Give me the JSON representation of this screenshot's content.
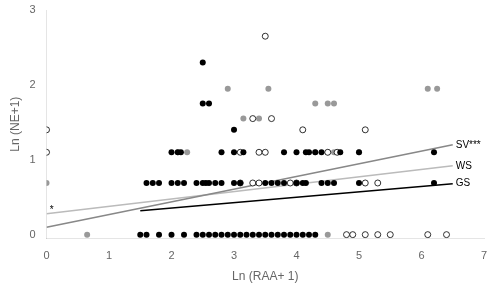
{
  "chart_data": {
    "type": "scatter",
    "title": "",
    "xlabel": "Ln (RAA+ 1)",
    "ylabel": "Ln (NE+1)",
    "xlim": [
      0,
      7
    ],
    "ylim": [
      -0.05,
      3
    ],
    "xticks": [
      0,
      1,
      2,
      3,
      4,
      5,
      6,
      7
    ],
    "yticks": [
      0,
      1,
      2,
      3
    ],
    "grid": false,
    "series": [
      {
        "type": "scatter",
        "marker": "circle",
        "color": "#000000",
        "x": [
          1.5,
          1.6,
          1.8,
          2.0,
          2.2,
          2.4,
          2.5,
          2.6,
          2.7,
          2.8,
          2.9,
          3.0,
          3.1,
          3.2,
          3.3,
          3.4,
          3.5,
          3.6,
          3.7,
          3.8,
          3.9,
          4.0,
          4.1,
          4.2,
          4.3,
          1.6,
          1.7,
          1.8,
          2.0,
          2.1,
          2.2,
          2.4,
          2.5,
          2.55,
          2.6,
          2.7,
          2.8,
          3.0,
          3.1,
          3.5,
          3.6,
          3.7,
          3.8,
          4.0,
          4.1,
          4.15,
          4.4,
          4.5,
          4.6,
          5.0,
          6.2,
          2.0,
          2.1,
          2.15,
          2.8,
          3.0,
          3.15,
          3.8,
          4.0,
          4.15,
          4.2,
          4.3,
          4.4,
          4.7,
          5.0,
          6.2,
          2.5,
          2.6,
          3.0,
          2.5
        ],
        "values": [
          0.0,
          0.0,
          0.0,
          0.0,
          0.0,
          0.0,
          0.0,
          0.0,
          0.0,
          0.0,
          0.0,
          0.0,
          0.0,
          0.0,
          0.0,
          0.0,
          0.0,
          0.0,
          0.0,
          0.0,
          0.0,
          0.0,
          0.0,
          0.0,
          0.0,
          0.69,
          0.69,
          0.69,
          0.69,
          0.69,
          0.69,
          0.69,
          0.69,
          0.69,
          0.69,
          0.69,
          0.69,
          0.69,
          0.69,
          0.69,
          0.69,
          0.69,
          0.69,
          0.69,
          0.69,
          0.69,
          0.69,
          0.69,
          0.69,
          0.69,
          0.69,
          1.1,
          1.1,
          1.1,
          1.1,
          1.1,
          1.1,
          1.1,
          1.1,
          1.1,
          1.1,
          1.1,
          1.1,
          1.1,
          1.1,
          1.1,
          1.75,
          1.75,
          1.4,
          2.3
        ]
      },
      {
        "type": "scatter",
        "marker": "circle",
        "color": "#ffffff",
        "x": [
          0.0,
          0.0,
          3.1,
          3.3,
          3.4,
          3.9,
          4.0,
          4.8,
          4.9,
          5.1,
          5.3,
          5.5,
          6.1,
          6.4,
          3.1,
          3.4,
          3.5,
          4.5,
          4.65,
          3.3,
          3.6,
          4.1,
          3.5,
          5.1,
          5.3,
          5.1
        ],
        "values": [
          1.1,
          1.4,
          0.69,
          0.69,
          0.69,
          0.69,
          0.69,
          0.0,
          0.0,
          0.0,
          0.0,
          0.0,
          0.0,
          0.0,
          1.1,
          1.1,
          1.1,
          1.1,
          1.1,
          1.55,
          1.55,
          1.4,
          2.65,
          0.69,
          0.69,
          1.4
        ]
      },
      {
        "type": "scatter",
        "marker": "circle",
        "color": "#999999",
        "x": [
          0.65,
          0.0,
          2.1,
          2.25,
          2.9,
          3.15,
          3.4,
          3.55,
          4.3,
          4.5,
          4.6,
          4.3,
          4.5,
          4.6,
          5.0,
          6.1,
          6.25,
          4.5
        ],
        "values": [
          0.0,
          0.69,
          1.1,
          1.1,
          1.95,
          1.55,
          1.55,
          1.95,
          1.75,
          1.75,
          1.75,
          1.1,
          1.1,
          1.1,
          1.1,
          1.95,
          1.95,
          0.0
        ]
      },
      {
        "type": "line",
        "line_style": "solid",
        "name": "SV***",
        "color": "#888888",
        "x": [
          0.0,
          6.5
        ],
        "values": [
          0.1,
          1.2
        ]
      },
      {
        "type": "line",
        "line_style": "solid",
        "name": "WS",
        "color": "#bbbbbb",
        "x": [
          0.0,
          6.5
        ],
        "values": [
          0.28,
          0.92
        ]
      },
      {
        "type": "line",
        "line_style": "solid",
        "name": "GS",
        "color": "#000000",
        "x": [
          1.5,
          6.5
        ],
        "values": [
          0.32,
          0.68
        ]
      }
    ],
    "annotations": [
      {
        "text": "*",
        "x": 0.05,
        "y": 0.32
      }
    ]
  }
}
